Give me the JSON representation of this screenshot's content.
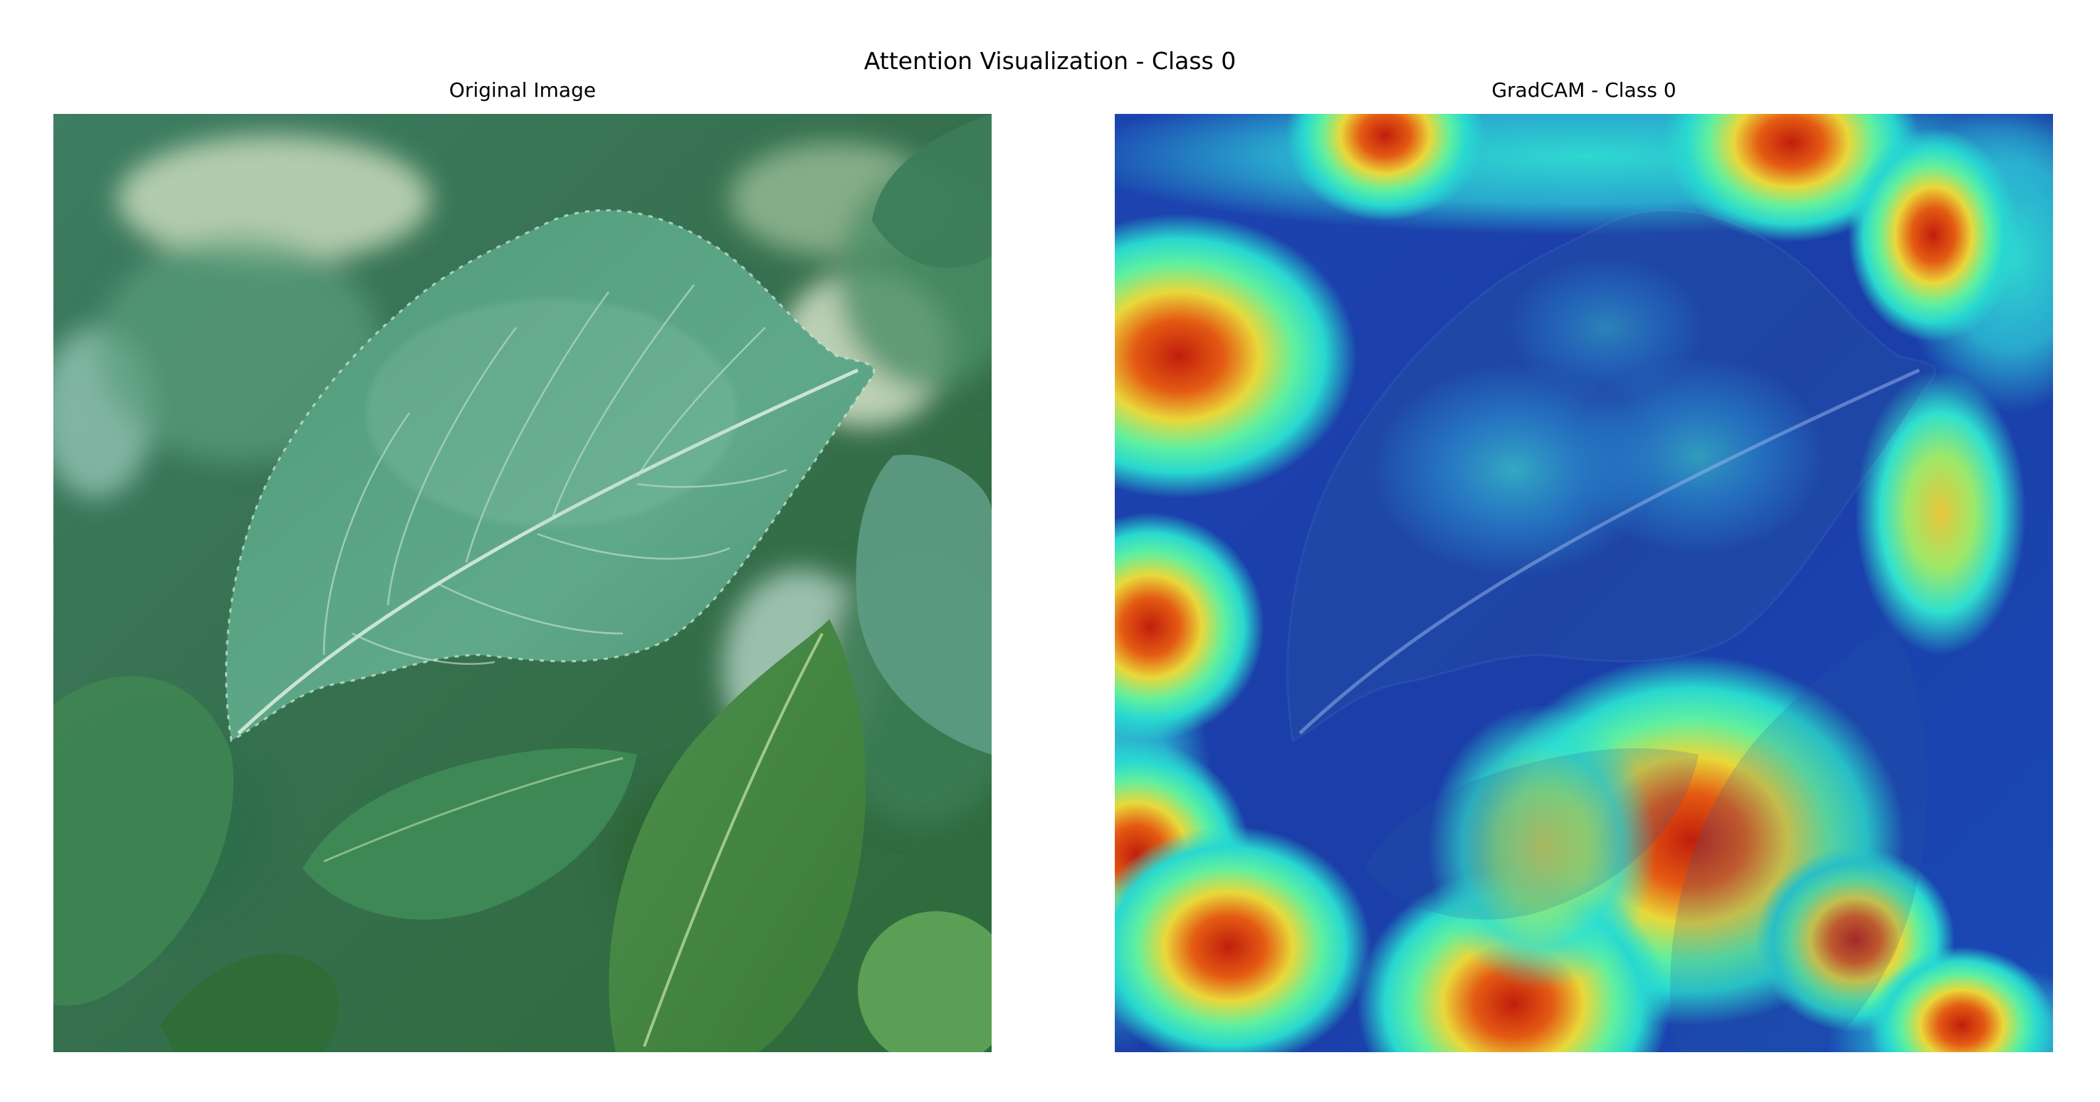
{
  "figure": {
    "title": "Attention Visualization - Class 0"
  },
  "panels": [
    {
      "title": "Original Image",
      "content": "photo",
      "icon": "leaf-photo"
    },
    {
      "title": "GradCAM - Class 0",
      "content": "heatmap-overlay",
      "colormap": "jet",
      "icon": "heatmap-overlay"
    }
  ],
  "colors": {
    "background": "#ffffff",
    "foliage_dark": "#2f6a45",
    "foliage_light": "#7db89a",
    "heat_low": "#1d3fb8",
    "heat_mid": "#2ee8c8",
    "heat_high": "#d11f10"
  }
}
